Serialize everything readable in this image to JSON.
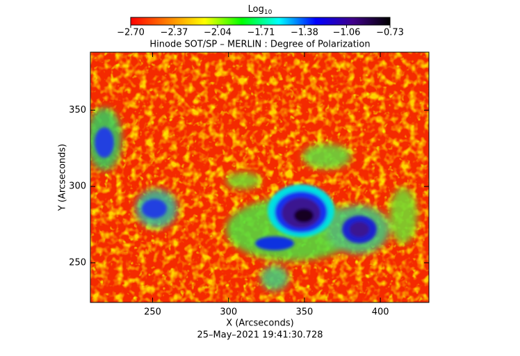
{
  "chart_data": {
    "type": "heatmap",
    "title": "Hinode SOT/SP – MERLIN : Degree of Polarization",
    "xlabel": "X (Arcseconds)",
    "ylabel": "Y (Arcseconds)",
    "footer": "25–May–2021 19:41:30.728",
    "xlim": [
      209,
      432
    ],
    "ylim": [
      224,
      388
    ],
    "xticks": [
      250,
      300,
      350,
      400
    ],
    "yticks": [
      250,
      300,
      350
    ],
    "colorbar": {
      "label": "Log",
      "label_sub": "10",
      "lim": [
        -2.7,
        -0.73
      ],
      "ticks": [
        {
          "value": -2.7,
          "label": "−2.70"
        },
        {
          "value": -2.37,
          "label": "−2.37"
        },
        {
          "value": -2.04,
          "label": "−2.04"
        },
        {
          "value": -1.71,
          "label": "−1.71"
        },
        {
          "value": -1.38,
          "label": "−1.38"
        },
        {
          "value": -1.06,
          "label": "−1.06"
        },
        {
          "value": -0.73,
          "label": "−0.73"
        }
      ],
      "colormap": [
        "#ff0000",
        "#ff8000",
        "#ffff00",
        "#00ff00",
        "#00ffff",
        "#0000ff",
        "#40008a",
        "#000000"
      ]
    }
  }
}
